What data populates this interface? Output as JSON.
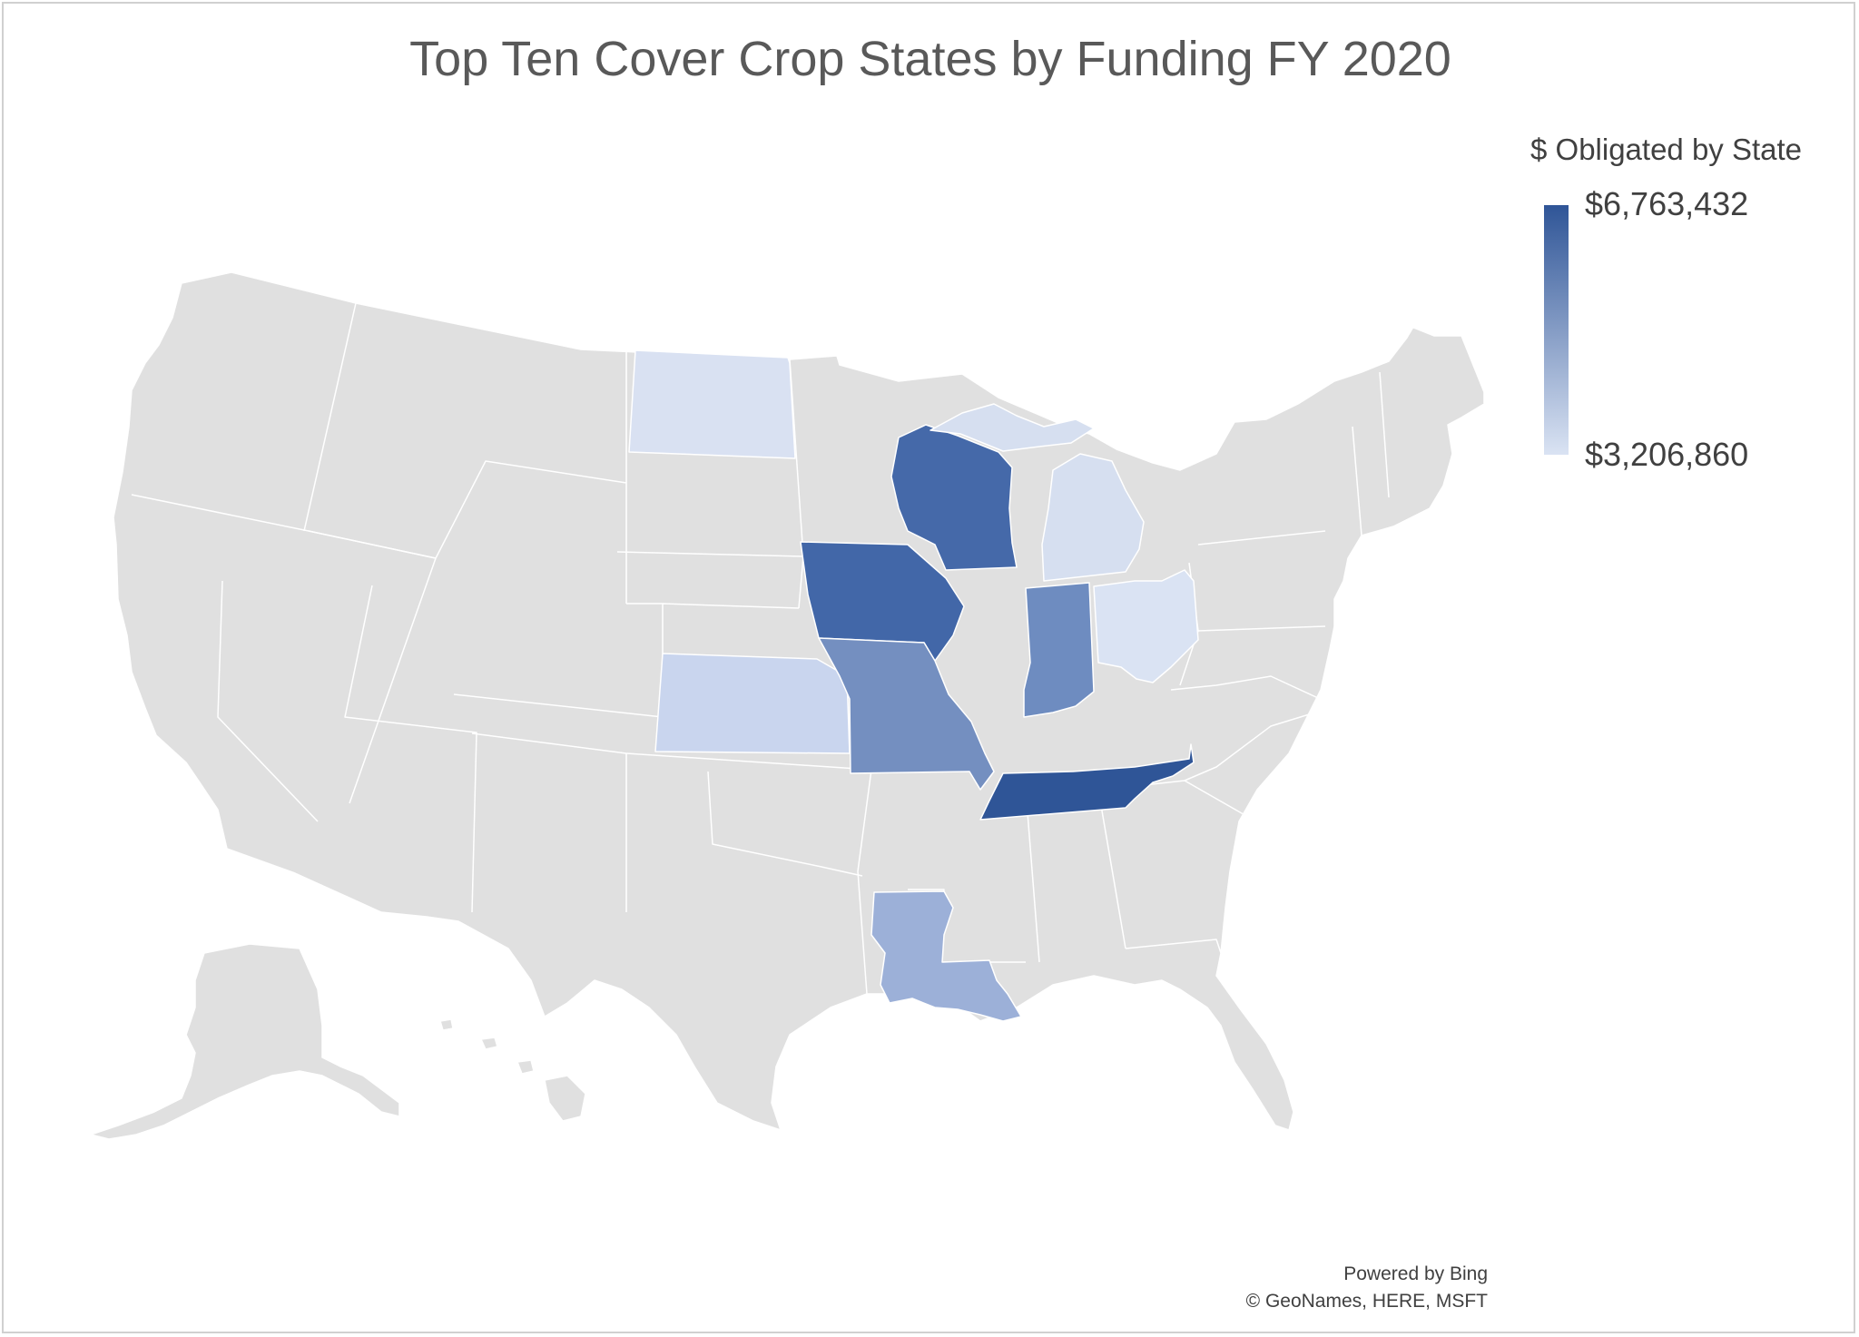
{
  "title": "Top Ten Cover Crop States by Funding FY 2020",
  "legend": {
    "title": "$ Obligated by State",
    "max_label": "$6,763,432",
    "min_label": "$3,206,860",
    "max_color": "#2f5597",
    "min_color": "#dae3f3"
  },
  "base_color": "#e0e0e0",
  "attribution": {
    "line1": "Powered by Bing",
    "line2": "© GeoNames, HERE, MSFT"
  },
  "highlighted_states": [
    {
      "name": "Tennessee",
      "color": "#2f5597"
    },
    {
      "name": "Iowa",
      "color": "#4267a8"
    },
    {
      "name": "Wisconsin",
      "color": "#4569a9"
    },
    {
      "name": "Indiana",
      "color": "#6e8cc0"
    },
    {
      "name": "Missouri",
      "color": "#748fc0"
    },
    {
      "name": "Louisiana",
      "color": "#9cb0d8"
    },
    {
      "name": "Kansas",
      "color": "#c9d5ee"
    },
    {
      "name": "Michigan",
      "color": "#d6dff0"
    },
    {
      "name": "North Dakota",
      "color": "#d9e1f2"
    },
    {
      "name": "Ohio",
      "color": "#dae3f3"
    }
  ]
}
